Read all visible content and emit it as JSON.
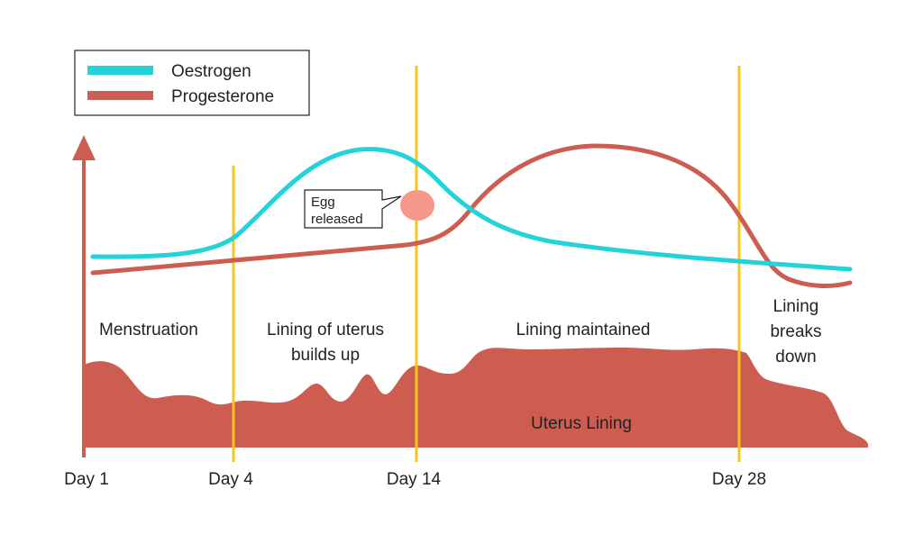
{
  "legend": {
    "items": [
      {
        "label": "Oestrogen",
        "color": "#22d3d9"
      },
      {
        "label": "Progesterone",
        "color": "#cd5d50"
      }
    ]
  },
  "day_markers": [
    "Day 1",
    "Day 4",
    "Day 14",
    "Day 28"
  ],
  "phases": {
    "menstruation": "Menstruation",
    "builds_up_line1": "Lining of uterus",
    "builds_up_line2": "builds up",
    "maintained": "Lining maintained",
    "breaks_line1": "Lining",
    "breaks_line2": "breaks",
    "breaks_line3": "down"
  },
  "callout": {
    "line1": "Egg",
    "line2": "released",
    "egg_color": "#f4988a"
  },
  "uterus_lining": {
    "label": "Uterus Lining",
    "color": "#cd5d50"
  },
  "colors": {
    "marker_line": "#f7c51e",
    "axis": "#cd5d50",
    "oestrogen": "#22d3d9",
    "progesterone": "#cd5d50"
  }
}
